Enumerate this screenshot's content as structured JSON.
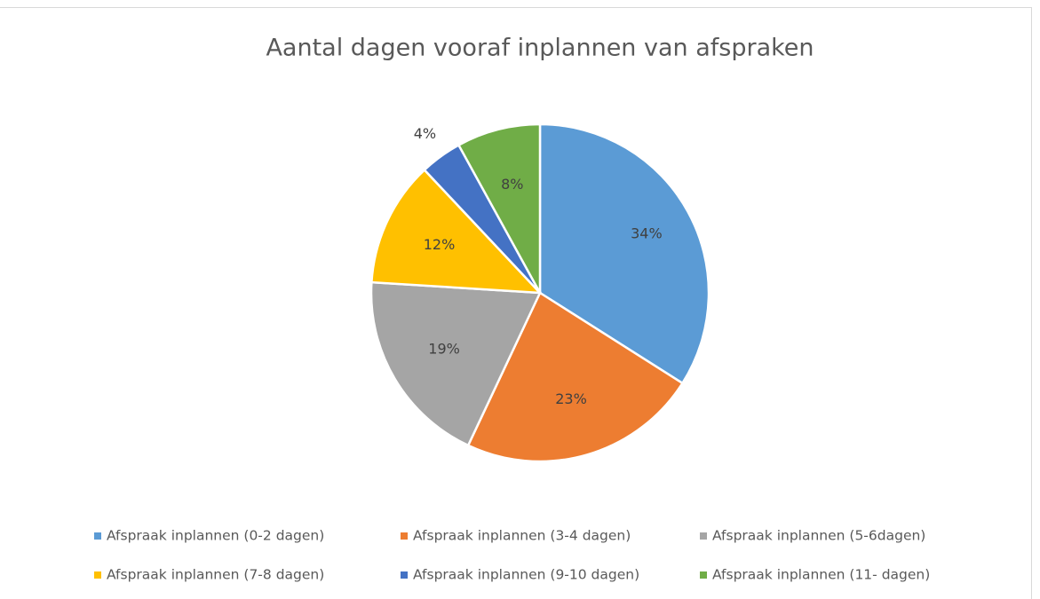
{
  "chart_data": {
    "type": "pie",
    "title": "Aantal dagen vooraf inplannen van afspraken",
    "categories": [
      "Afspraak inplannen (0-2 dagen)",
      "Afspraak inplannen (3-4 dagen)",
      "Afspraak inplannen (5-6dagen)",
      "Afspraak inplannen (7-8 dagen)",
      "Afspraak inplannen (9-10 dagen)",
      "Afspraak inplannen (11- dagen)"
    ],
    "values": [
      34,
      23,
      19,
      12,
      4,
      8
    ],
    "value_labels": [
      "34%",
      "23%",
      "19%",
      "12%",
      "4%",
      "8%"
    ],
    "colors": [
      "#5b9bd5",
      "#ed7d31",
      "#a5a5a5",
      "#ffc000",
      "#4472c4",
      "#70ad47"
    ],
    "legend": "bottom"
  }
}
